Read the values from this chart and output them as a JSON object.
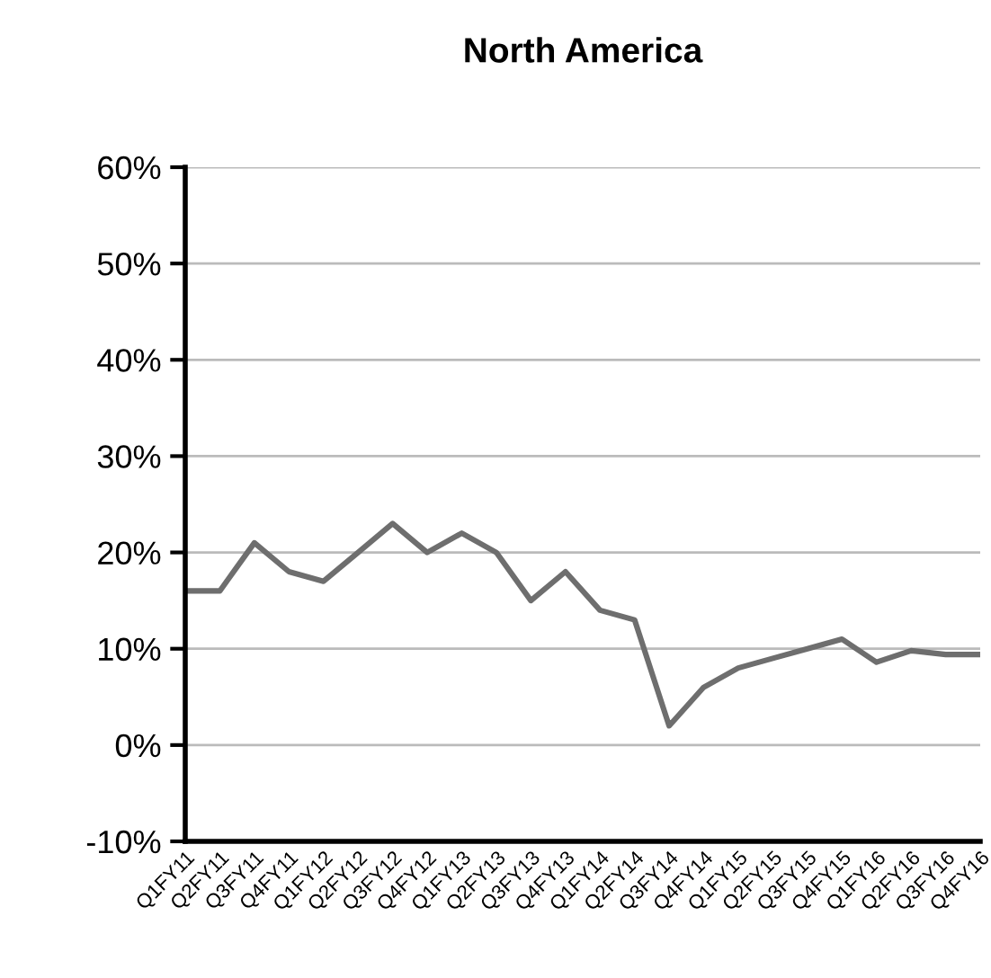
{
  "chart_data": {
    "type": "line",
    "title": "North America",
    "categories": [
      "Q1FY11",
      "Q2FY11",
      "Q3FY11",
      "Q4FY11",
      "Q1FY12",
      "Q2FY12",
      "Q3FY12",
      "Q4FY12",
      "Q1FY13",
      "Q2FY13",
      "Q3FY13",
      "Q4FY13",
      "Q1FY14",
      "Q2FY14",
      "Q3FY14",
      "Q4FY14",
      "Q1FY15",
      "Q2FY15",
      "Q3FY15",
      "Q4FY15",
      "Q1FY16",
      "Q2FY16",
      "Q3FY16",
      "Q4FY16"
    ],
    "series": [
      {
        "color": "#6e6e6e",
        "values": [
          16,
          16,
          21,
          18,
          17,
          20,
          23,
          20,
          22,
          20,
          15,
          18,
          14,
          13,
          2,
          6,
          8,
          9,
          10,
          11,
          8.6,
          9.8,
          9.4,
          9.4
        ]
      }
    ],
    "ylim": [
      -10,
      60
    ],
    "yticks": [
      {
        "value": -10,
        "label": "-10%"
      },
      {
        "value": 0,
        "label": "0%"
      },
      {
        "value": 10,
        "label": "10%"
      },
      {
        "value": 20,
        "label": "20%"
      },
      {
        "value": 30,
        "label": "30%"
      },
      {
        "value": 40,
        "label": "40%"
      },
      {
        "value": 50,
        "label": "50%"
      },
      {
        "value": 60,
        "label": "60%"
      }
    ],
    "grid": "y",
    "legend": false,
    "marker": "none",
    "line_style": "solid"
  }
}
